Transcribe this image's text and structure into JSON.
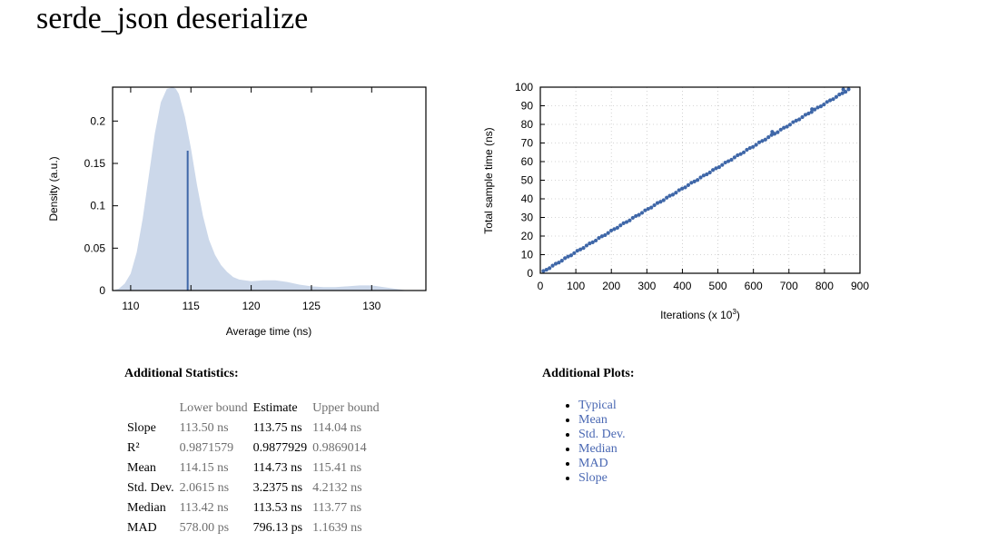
{
  "page": {
    "title": "serde_json deserialize"
  },
  "chart_data": [
    {
      "type": "area",
      "xlabel": "Average time (ns)",
      "ylabel": "Density (a.u.)",
      "xlim": [
        108.5,
        134.5
      ],
      "ylim": [
        0,
        0.24
      ],
      "x_ticks": [
        "110",
        "115",
        "120",
        "125",
        "130"
      ],
      "y_ticks": [
        "0",
        "0.05",
        "0.1",
        "0.15",
        "0.2"
      ],
      "fill_color": "#ccd8ea",
      "line_color": "#3f67a8",
      "density_x": [
        108.5,
        109.0,
        109.5,
        110.0,
        110.5,
        111.0,
        111.5,
        112.0,
        112.5,
        113.0,
        113.5,
        113.75,
        114.0,
        114.5,
        115.0,
        115.5,
        116.0,
        116.5,
        117.0,
        117.5,
        118.0,
        118.5,
        119.0,
        120.0,
        121.0,
        122.0,
        123.0,
        124.0,
        125.0,
        126.0,
        127.0,
        128.0,
        129.0,
        130.0,
        131.0,
        132.0,
        133.0
      ],
      "density_y": [
        0.0,
        0.002,
        0.008,
        0.02,
        0.045,
        0.085,
        0.135,
        0.185,
        0.222,
        0.238,
        0.24,
        0.238,
        0.232,
        0.205,
        0.168,
        0.125,
        0.088,
        0.06,
        0.042,
        0.03,
        0.022,
        0.016,
        0.013,
        0.011,
        0.012,
        0.012,
        0.01,
        0.007,
        0.005,
        0.004,
        0.004,
        0.005,
        0.006,
        0.006,
        0.004,
        0.002,
        0.0
      ],
      "mean_line": {
        "x": 114.73,
        "y": 0.165
      }
    },
    {
      "type": "scatter",
      "xlabel": "Iterations (x 10",
      "xlabel_sup": "3",
      "xlabel_suffix": ")",
      "ylabel": "Total sample time (ns)",
      "xlim": [
        0,
        900
      ],
      "ylim": [
        0,
        100
      ],
      "x_ticks": [
        "0",
        "100",
        "200",
        "300",
        "400",
        "500",
        "600",
        "700",
        "800",
        "900"
      ],
      "y_ticks": [
        "0",
        "10",
        "20",
        "30",
        "40",
        "50",
        "60",
        "70",
        "80",
        "90",
        "100"
      ],
      "grid": true,
      "point_color": "#3f67a8",
      "n_points": 100,
      "x_max_iterations": 868,
      "slope_ns_per_kiter": 0.11375,
      "outliers": [
        {
          "x": 653,
          "y": 76.0
        },
        {
          "x": 765,
          "y": 88.2
        },
        {
          "x": 853,
          "y": 98.8
        }
      ]
    }
  ],
  "stats": {
    "heading": "Additional Statistics:",
    "headers": [
      "",
      "Lower bound",
      "Estimate",
      "Upper bound"
    ],
    "rows": [
      {
        "label": "Slope",
        "lower": "113.50 ns",
        "estimate": "113.75 ns",
        "upper": "114.04 ns"
      },
      {
        "label": "R²",
        "lower": "0.9871579",
        "estimate": "0.9877929",
        "upper": "0.9869014"
      },
      {
        "label": "Mean",
        "lower": "114.15 ns",
        "estimate": "114.73 ns",
        "upper": "115.41 ns"
      },
      {
        "label": "Std. Dev.",
        "lower": "2.0615 ns",
        "estimate": "3.2375 ns",
        "upper": "4.2132 ns"
      },
      {
        "label": "Median",
        "lower": "113.42 ns",
        "estimate": "113.53 ns",
        "upper": "113.77 ns"
      },
      {
        "label": "MAD",
        "lower": "578.00 ps",
        "estimate": "796.13 ps",
        "upper": "1.1639 ns"
      }
    ]
  },
  "plots": {
    "heading": "Additional Plots:",
    "links": [
      "Typical",
      "Mean",
      "Std. Dev.",
      "Median",
      "MAD",
      "Slope"
    ]
  }
}
